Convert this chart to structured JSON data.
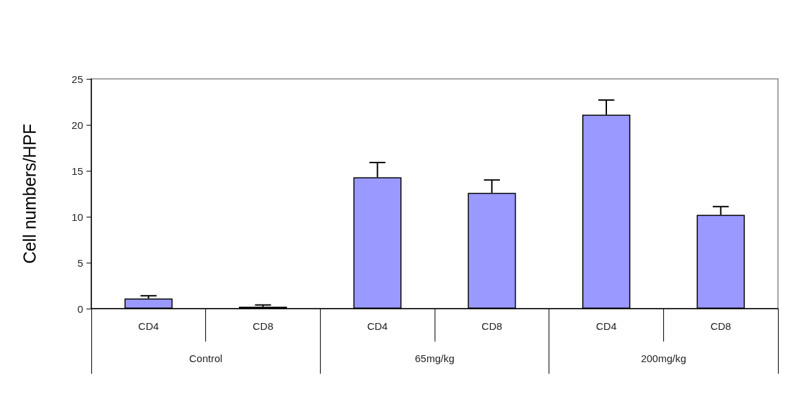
{
  "chart_data": {
    "type": "bar",
    "ylabel": "Cell numbers/HPF",
    "categories": [
      "CD4",
      "CD8",
      "CD4",
      "CD8",
      "CD4",
      "CD8"
    ],
    "values": [
      1.1,
      0.2,
      14.3,
      12.6,
      21.1,
      10.2
    ],
    "errors": [
      [
        1.1,
        1.4
      ],
      [
        0.2,
        0.4
      ],
      [
        14.3,
        15.9
      ],
      [
        12.6,
        14.0
      ],
      [
        21.1,
        22.7
      ],
      [
        10.2,
        11.1
      ]
    ],
    "color": "#9999ff",
    "annotations": [
      "Control",
      "65mg/kg",
      "200mg/kg"
    ],
    "ylim": [
      0,
      25
    ],
    "yticks": [
      0,
      5,
      10,
      15,
      20,
      25
    ],
    "grid": false
  }
}
